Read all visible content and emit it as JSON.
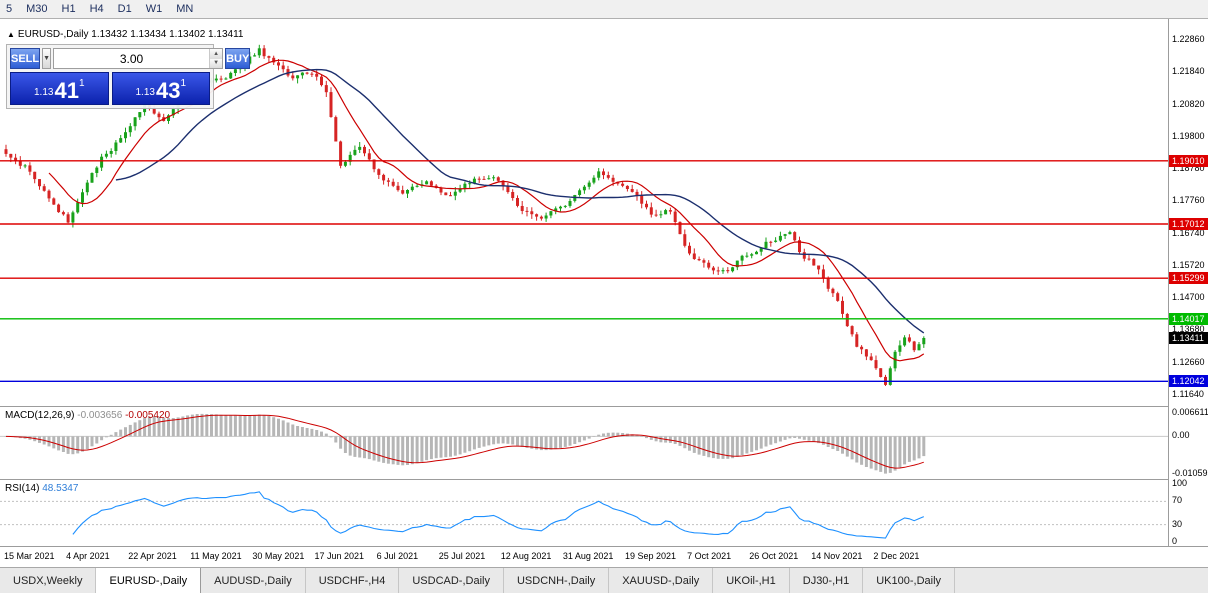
{
  "toolbar": {
    "timeframes": [
      "5",
      "M30",
      "H1",
      "H4",
      "D1",
      "W1",
      "MN"
    ]
  },
  "chart_header": {
    "symbol": "EURUSD-,Daily",
    "ohlc": "1.13432 1.13434 1.13402 1.13411"
  },
  "trade_panel": {
    "sell_label": "SELL",
    "buy_label": "BUY",
    "volume": "3.00",
    "sell_price": {
      "base": "1.13",
      "pips": "41",
      "point": "1"
    },
    "buy_price": {
      "base": "1.13",
      "pips": "43",
      "point": "1"
    }
  },
  "price_axis": {
    "labels": [
      "1.22860",
      "1.21840",
      "1.20820",
      "1.19800",
      "1.18780",
      "1.17760",
      "1.16740",
      "1.15720",
      "1.14700",
      "1.13680",
      "1.12660",
      "1.11640"
    ]
  },
  "levels": [
    {
      "value": 1.1901,
      "label": "1.19010",
      "color": "#dd0000"
    },
    {
      "value": 1.17012,
      "label": "1.17012",
      "color": "#dd0000"
    },
    {
      "value": 1.15299,
      "label": "1.15299",
      "color": "#dd0000"
    },
    {
      "value": 1.14017,
      "label": "1.14017",
      "color": "#00bb00"
    },
    {
      "value": 1.12042,
      "label": "1.12042",
      "color": "#0000dd"
    }
  ],
  "current_price": {
    "value": 1.13411,
    "label": "1.13411"
  },
  "macd_panel": {
    "label": "MACD(12,26,9)",
    "value_main": "-0.003656",
    "value_signal": "-0.005420",
    "axis": [
      "0.006611",
      "0.00",
      "-0.010595"
    ]
  },
  "rsi_panel": {
    "label": "RSI(14)",
    "value": "48.5347",
    "axis": [
      "100",
      "70",
      "30",
      "0"
    ],
    "levels": [
      70,
      30
    ]
  },
  "time_axis": {
    "labels": [
      "15 Mar 2021",
      "4 Apr 2021",
      "22 Apr 2021",
      "11 May 2021",
      "30 May 2021",
      "17 Jun 2021",
      "6 Jul 2021",
      "25 Jul 2021",
      "12 Aug 2021",
      "31 Aug 2021",
      "19 Sep 2021",
      "7 Oct 2021",
      "26 Oct 2021",
      "14 Nov 2021",
      "2 Dec 2021"
    ]
  },
  "tabs": [
    "USDX,Weekly",
    "EURUSD-,Daily",
    "AUDUSD-,Daily",
    "USDCHF-,H4",
    "USDCAD-,Daily",
    "USDCNH-,Daily",
    "XAUUSD-,Daily",
    "UKOil-,H1",
    "DJ30-,H1",
    "UK100-,Daily"
  ],
  "active_tab": "EURUSD-,Daily",
  "chart_data": {
    "type": "candlestick",
    "symbol": "EURUSD-",
    "timeframe": "Daily",
    "current_ohlc": {
      "open": 1.13432,
      "high": 1.13434,
      "low": 1.13402,
      "close": 1.13411
    },
    "price_scale": {
      "top": 1.2286,
      "bottom": 1.1164
    },
    "high_extreme": 1.2266,
    "low_extreme": 1.1186,
    "num_candles": 193,
    "anchors": [
      [
        0,
        1.193
      ],
      [
        4,
        1.1885
      ],
      [
        9,
        1.179
      ],
      [
        13,
        1.1712
      ],
      [
        15,
        1.177
      ],
      [
        20,
        1.1905
      ],
      [
        24,
        1.1975
      ],
      [
        29,
        1.2075
      ],
      [
        33,
        1.2025
      ],
      [
        38,
        1.2135
      ],
      [
        43,
        1.215
      ],
      [
        48,
        1.2185
      ],
      [
        53,
        1.2255
      ],
      [
        56,
        1.2205
      ],
      [
        60,
        1.2165
      ],
      [
        64,
        1.2185
      ],
      [
        67,
        1.2125
      ],
      [
        70,
        1.1895
      ],
      [
        74,
        1.1935
      ],
      [
        78,
        1.1855
      ],
      [
        83,
        1.1795
      ],
      [
        88,
        1.184
      ],
      [
        93,
        1.1788
      ],
      [
        98,
        1.1848
      ],
      [
        103,
        1.1838
      ],
      [
        108,
        1.1742
      ],
      [
        112,
        1.171
      ],
      [
        116,
        1.1748
      ],
      [
        120,
        1.1798
      ],
      [
        124,
        1.1878
      ],
      [
        127,
        1.1842
      ],
      [
        131,
        1.1812
      ],
      [
        135,
        1.1728
      ],
      [
        139,
        1.1742
      ],
      [
        143,
        1.1602
      ],
      [
        147,
        1.1562
      ],
      [
        151,
        1.1558
      ],
      [
        155,
        1.1602
      ],
      [
        160,
        1.1648
      ],
      [
        164,
        1.1682
      ],
      [
        166,
        1.1608
      ],
      [
        170,
        1.1562
      ],
      [
        174,
        1.1452
      ],
      [
        178,
        1.1322
      ],
      [
        182,
        1.1252
      ],
      [
        184,
        1.1196
      ],
      [
        186,
        1.1292
      ],
      [
        188,
        1.1338
      ],
      [
        190,
        1.1302
      ],
      [
        192,
        1.13411
      ]
    ],
    "moving_averages": [
      {
        "period": 10,
        "color": "#cc0000"
      },
      {
        "period": 24,
        "color": "#1c2f6e"
      }
    ],
    "macd_range": [
      -0.010595,
      0.006611
    ],
    "colors": {
      "bull": "#18a21b",
      "bear": "#d62424",
      "ma_fast": "#cc0000",
      "ma_slow": "#1c2f6e"
    }
  }
}
